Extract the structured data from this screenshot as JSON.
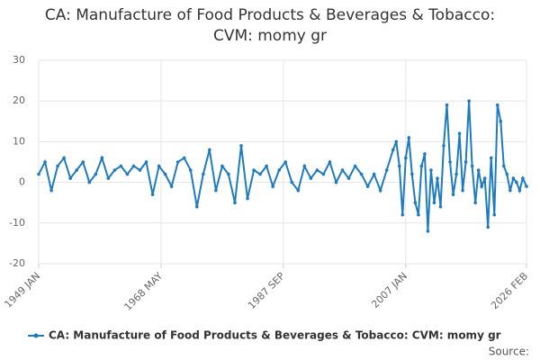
{
  "chart_data": {
    "type": "line",
    "title": "CA: Manufacture of Food Products & Beverages & Tobacco: CVM: momy gr",
    "x": [
      "1949 JAN",
      "1950 JAN",
      "1951 JAN",
      "1952 JAN",
      "1953 JAN",
      "1954 JAN",
      "1955 JAN",
      "1956 JAN",
      "1957 JAN",
      "1958 JAN",
      "1959 JAN",
      "1960 JAN",
      "1961 JAN",
      "1962 JAN",
      "1963 JAN",
      "1964 JAN",
      "1965 JAN",
      "1966 JAN",
      "1967 JAN",
      "1968 JAN",
      "1969 JAN",
      "1970 JAN",
      "1971 JAN",
      "1972 JAN",
      "1973 JAN",
      "1974 JAN",
      "1975 JAN",
      "1976 JAN",
      "1977 JAN",
      "1978 JAN",
      "1979 JAN",
      "1980 JAN",
      "1981 JAN",
      "1982 JAN",
      "1983 JAN",
      "1984 JAN",
      "1985 JAN",
      "1986 JAN",
      "1987 JAN",
      "1988 JAN",
      "1989 JAN",
      "1990 JAN",
      "1991 JAN",
      "1992 JAN",
      "1993 JAN",
      "1994 JAN",
      "1995 JAN",
      "1996 JAN",
      "1997 JAN",
      "1998 JAN",
      "1999 JAN",
      "2000 JAN",
      "2001 JAN",
      "2002 JAN",
      "2003 JAN",
      "2004 JAN",
      "2005 JAN",
      "2005 JUL",
      "2006 JAN",
      "2006 JUL",
      "2007 JAN",
      "2007 JUL",
      "2008 JAN",
      "2008 JUL",
      "2009 JAN",
      "2009 JUL",
      "2010 JAN",
      "2010 JUL",
      "2011 JAN",
      "2011 JUL",
      "2012 JAN",
      "2012 JUL",
      "2013 JAN",
      "2013 JUL",
      "2014 JAN",
      "2014 JUL",
      "2015 JAN",
      "2015 JUL",
      "2016 JAN",
      "2016 JUL",
      "2017 JAN",
      "2017 JUL",
      "2018 JAN",
      "2018 JUL",
      "2019 JAN",
      "2019 JUL",
      "2020 JAN",
      "2020 JUL",
      "2021 JAN",
      "2021 JUL",
      "2022 JAN",
      "2022 JUL",
      "2023 JAN",
      "2023 JUL",
      "2024 JAN",
      "2024 JUL",
      "2025 JAN",
      "2025 JUL",
      "2026 FEB"
    ],
    "series": [
      {
        "name": "CA: Manufacture of Food Products & Beverages & Tobacco: CVM: momy gr",
        "color": "#1f7bbf",
        "values": [
          2,
          5,
          -2,
          4,
          6,
          1,
          3,
          5,
          0,
          2,
          6,
          1,
          3,
          4,
          2,
          4,
          3,
          5,
          -3,
          4,
          2,
          -1,
          5,
          6,
          3,
          -6,
          2,
          8,
          -2,
          4,
          2,
          -5,
          9,
          -4,
          3,
          2,
          4,
          -1,
          3,
          5,
          0,
          -2,
          4,
          1,
          3,
          2,
          5,
          0,
          3,
          1,
          4,
          2,
          -1,
          2,
          -2,
          3,
          8,
          10,
          4,
          -8,
          6,
          11,
          2,
          -5,
          -8,
          4,
          7,
          -12,
          3,
          -5,
          1,
          -6,
          9,
          19,
          5,
          -3,
          2,
          12,
          -2,
          5,
          20,
          4,
          -5,
          3,
          -1,
          1,
          -11,
          6,
          -8,
          19,
          15,
          4,
          2,
          -2,
          1,
          0,
          -2,
          1,
          -1
        ]
      }
    ],
    "xlim": [
      "1949 JAN",
      "2026 FEB"
    ],
    "xticks": [
      "1949 JAN",
      "1968 MAY",
      "1987 SEP",
      "2007 JAN",
      "2026 FEB"
    ],
    "ylim": [
      -20,
      30
    ],
    "yticks": [
      -20,
      -10,
      0,
      10,
      20,
      30
    ],
    "grid": true,
    "source": "Source:"
  }
}
